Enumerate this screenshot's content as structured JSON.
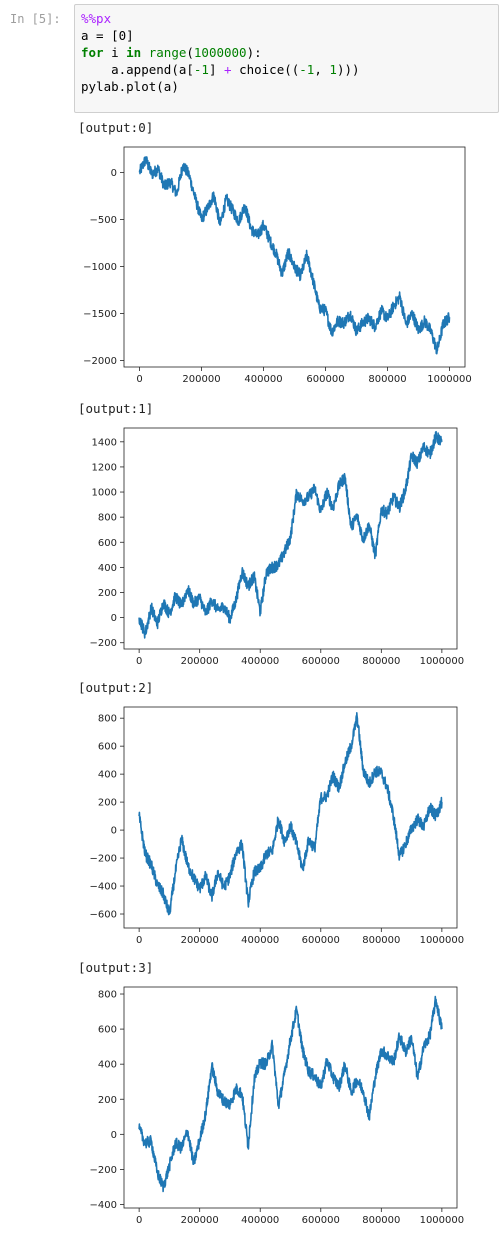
{
  "prompt": "In [5]:",
  "code": {
    "line1": "%%px",
    "line2": "a = [0]",
    "line3": {
      "kw_for": "for",
      "var": " i ",
      "kw_in": "in",
      "func": " range",
      "paren_open": "(",
      "num": "1000000",
      "paren_close": "):"
    },
    "line4": {
      "indent": "    a.",
      "method": "append",
      "rest1": "(a[",
      "neg": "-1",
      "rest2": "] ",
      "plus": "+",
      "rest3": " choice((",
      "neg2": "-1",
      "rest4": ", ",
      "one": "1",
      "rest5": ")))"
    },
    "line5": {
      "obj": "pylab.",
      "method": "plot",
      "rest": "(a)"
    }
  },
  "outputs": [
    "[output:0]",
    "[output:1]",
    "[output:2]",
    "[output:3]"
  ],
  "colors": {
    "line": "#1f77b4",
    "axis": "#222222"
  },
  "chart_data": [
    {
      "type": "line",
      "x_ticks": [
        0,
        200000,
        400000,
        600000,
        800000,
        1000000
      ],
      "x_tick_labels": [
        "0",
        "200000",
        "400000",
        "600000",
        "800000",
        "1000000"
      ],
      "y_ticks": [
        0,
        -500,
        -1000,
        -1500,
        -2000
      ],
      "y_tick_labels": [
        "0",
        "−500",
        "−1000",
        "−1500",
        "−2000"
      ],
      "xlim": [
        -50000,
        1050000
      ],
      "ylim": [
        -2070,
        270
      ],
      "x": [
        0,
        20000,
        40000,
        60000,
        80000,
        100000,
        120000,
        140000,
        160000,
        180000,
        200000,
        220000,
        240000,
        260000,
        280000,
        300000,
        320000,
        340000,
        360000,
        380000,
        400000,
        420000,
        440000,
        460000,
        480000,
        500000,
        520000,
        540000,
        560000,
        580000,
        600000,
        620000,
        640000,
        660000,
        680000,
        700000,
        720000,
        740000,
        760000,
        780000,
        800000,
        820000,
        840000,
        860000,
        880000,
        900000,
        920000,
        940000,
        960000,
        980000,
        1000000
      ],
      "values": [
        0,
        140,
        -20,
        40,
        -150,
        -100,
        -230,
        80,
        -30,
        -280,
        -500,
        -380,
        -240,
        -560,
        -280,
        -400,
        -520,
        -350,
        -600,
        -680,
        -560,
        -720,
        -860,
        -1080,
        -850,
        -1010,
        -1100,
        -880,
        -1150,
        -1440,
        -1470,
        -1700,
        -1580,
        -1600,
        -1500,
        -1690,
        -1600,
        -1550,
        -1640,
        -1470,
        -1560,
        -1420,
        -1320,
        -1620,
        -1500,
        -1680,
        -1580,
        -1690,
        -1900,
        -1610,
        -1540
      ]
    },
    {
      "type": "line",
      "x_ticks": [
        0,
        200000,
        400000,
        600000,
        800000,
        1000000
      ],
      "x_tick_labels": [
        "0",
        "200000",
        "400000",
        "600000",
        "800000",
        "1000000"
      ],
      "y_ticks": [
        1400,
        1200,
        1000,
        800,
        600,
        400,
        200,
        0,
        -200
      ],
      "y_tick_labels": [
        "1400",
        "1200",
        "1000",
        "800",
        "600",
        "400",
        "200",
        "0",
        "−200"
      ],
      "xlim": [
        -50000,
        1050000
      ],
      "ylim": [
        -250,
        1510
      ],
      "x": [
        0,
        20000,
        40000,
        60000,
        80000,
        100000,
        120000,
        140000,
        160000,
        180000,
        200000,
        220000,
        240000,
        260000,
        280000,
        300000,
        320000,
        340000,
        360000,
        380000,
        400000,
        420000,
        440000,
        460000,
        480000,
        500000,
        520000,
        540000,
        560000,
        580000,
        600000,
        620000,
        640000,
        660000,
        680000,
        700000,
        720000,
        740000,
        760000,
        780000,
        800000,
        820000,
        840000,
        860000,
        880000,
        900000,
        920000,
        940000,
        960000,
        980000,
        1000000
      ],
      "values": [
        0,
        -130,
        80,
        -50,
        120,
        30,
        170,
        90,
        230,
        110,
        160,
        30,
        140,
        60,
        90,
        -10,
        140,
        370,
        250,
        330,
        40,
        360,
        400,
        420,
        520,
        640,
        990,
        930,
        960,
        1030,
        840,
        1000,
        870,
        1050,
        1120,
        720,
        810,
        620,
        740,
        490,
        860,
        830,
        960,
        880,
        1020,
        1290,
        1230,
        1360,
        1300,
        1440,
        1400
      ]
    },
    {
      "type": "line",
      "x_ticks": [
        0,
        200000,
        400000,
        600000,
        800000,
        1000000
      ],
      "x_tick_labels": [
        "0",
        "200000",
        "400000",
        "600000",
        "800000",
        "1000000"
      ],
      "y_ticks": [
        800,
        600,
        400,
        200,
        0,
        -200,
        -400,
        -600
      ],
      "y_tick_labels": [
        "800",
        "600",
        "400",
        "200",
        "0",
        "−200",
        "−400",
        "−600"
      ],
      "xlim": [
        -50000,
        1050000
      ],
      "ylim": [
        -700,
        880
      ],
      "x": [
        0,
        20000,
        40000,
        60000,
        80000,
        100000,
        120000,
        140000,
        160000,
        180000,
        200000,
        220000,
        240000,
        260000,
        280000,
        300000,
        320000,
        340000,
        360000,
        380000,
        400000,
        420000,
        440000,
        460000,
        480000,
        500000,
        520000,
        540000,
        560000,
        580000,
        600000,
        620000,
        640000,
        660000,
        680000,
        700000,
        720000,
        740000,
        760000,
        780000,
        800000,
        820000,
        840000,
        860000,
        880000,
        900000,
        920000,
        940000,
        960000,
        980000,
        1000000
      ],
      "values": [
        100,
        -170,
        -250,
        -390,
        -460,
        -600,
        -300,
        -60,
        -250,
        -340,
        -420,
        -330,
        -480,
        -300,
        -410,
        -330,
        -160,
        -100,
        -520,
        -300,
        -280,
        -170,
        -150,
        80,
        -80,
        30,
        -100,
        -280,
        -70,
        -130,
        230,
        240,
        390,
        300,
        480,
        600,
        810,
        430,
        330,
        420,
        410,
        300,
        100,
        -190,
        -100,
        10,
        80,
        20,
        160,
        100,
        200
      ]
    },
    {
      "type": "line",
      "x_ticks": [
        0,
        200000,
        400000,
        600000,
        800000,
        1000000
      ],
      "x_tick_labels": [
        "0",
        "200000",
        "400000",
        "600000",
        "800000",
        "1000000"
      ],
      "y_ticks": [
        800,
        600,
        400,
        200,
        0,
        -200,
        -400
      ],
      "y_tick_labels": [
        "800",
        "600",
        "400",
        "200",
        "0",
        "−200",
        "−400"
      ],
      "xlim": [
        -50000,
        1050000
      ],
      "ylim": [
        -420,
        840
      ],
      "x": [
        0,
        20000,
        40000,
        60000,
        80000,
        100000,
        120000,
        140000,
        160000,
        180000,
        200000,
        220000,
        240000,
        260000,
        280000,
        300000,
        320000,
        340000,
        360000,
        380000,
        400000,
        420000,
        440000,
        460000,
        480000,
        500000,
        520000,
        540000,
        560000,
        580000,
        600000,
        620000,
        640000,
        660000,
        680000,
        700000,
        720000,
        740000,
        760000,
        780000,
        800000,
        820000,
        840000,
        860000,
        880000,
        900000,
        920000,
        940000,
        960000,
        980000,
        1000000
      ],
      "values": [
        30,
        -50,
        -40,
        -220,
        -300,
        -180,
        -50,
        -80,
        20,
        -170,
        -30,
        120,
        390,
        240,
        190,
        170,
        260,
        230,
        -70,
        310,
        410,
        400,
        510,
        160,
        340,
        540,
        710,
        480,
        360,
        330,
        270,
        420,
        330,
        270,
        400,
        240,
        310,
        250,
        100,
        330,
        480,
        450,
        410,
        560,
        470,
        550,
        320,
        500,
        560,
        770,
        600
      ]
    }
  ]
}
